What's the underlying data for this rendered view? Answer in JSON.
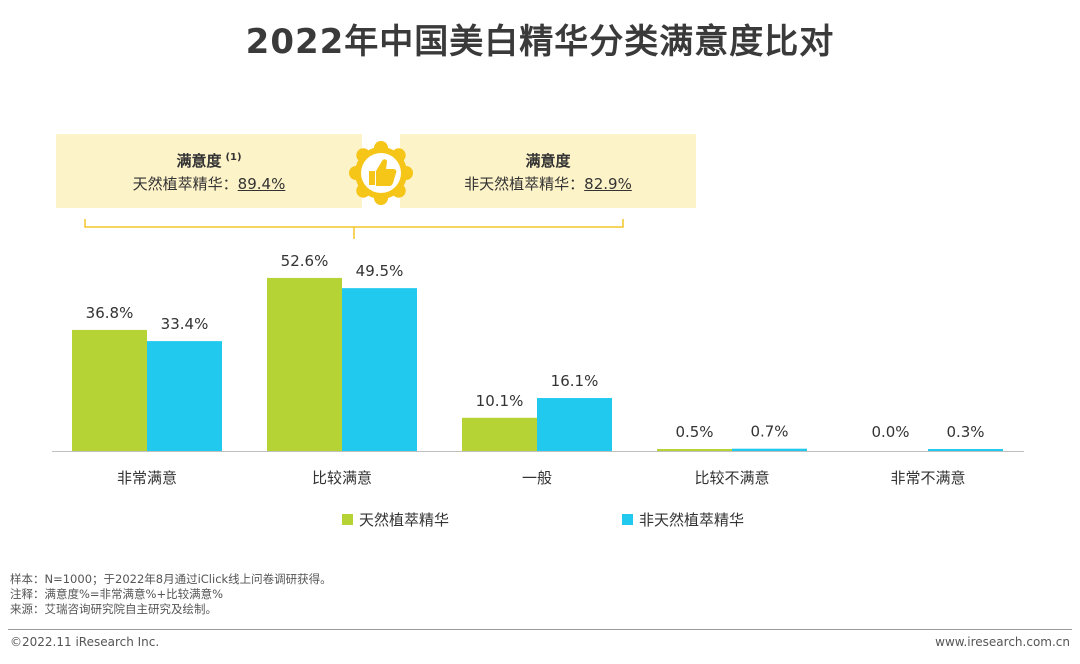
{
  "title": "2022年中国美白精华分类满意度比对",
  "callouts": {
    "left": {
      "heading": "满意度",
      "footnote": "(1)",
      "label": "天然植萃精华：",
      "value": "89.4%"
    },
    "right": {
      "heading": "满意度",
      "label": "非天然植萃精华：",
      "value": "82.9%"
    }
  },
  "colors": {
    "natural": "#b5d334",
    "non_natural": "#22c9ef",
    "callout_bg": "#fdf3c8",
    "badge": "#f5c518"
  },
  "chart_data": {
    "type": "bar",
    "categories": [
      "非常满意",
      "比较满意",
      "一般",
      "比较不满意",
      "非常不满意"
    ],
    "series": [
      {
        "name": "天然植萃精华",
        "values": [
          36.8,
          52.6,
          10.1,
          0.5,
          0.0
        ]
      },
      {
        "name": "非天然植萃精华",
        "values": [
          33.4,
          49.5,
          16.1,
          0.7,
          0.3
        ]
      }
    ],
    "labels": [
      [
        "36.8%",
        "52.6%",
        "10.1%",
        "0.5%",
        "0.0%"
      ],
      [
        "33.4%",
        "49.5%",
        "16.1%",
        "0.7%",
        "0.3%"
      ]
    ],
    "ylim": [
      0,
      60
    ],
    "legend_position": "bottom-center"
  },
  "notes": [
    "样本：N=1000；于2022年8月通过iClick线上问卷调研获得。",
    "注释：满意度%=非常满意%+比较满意%",
    "来源：艾瑞咨询研究院自主研究及绘制。"
  ],
  "footer": {
    "copyright": "©2022.11 iResearch Inc.",
    "url": "www.iresearch.com.cn"
  }
}
